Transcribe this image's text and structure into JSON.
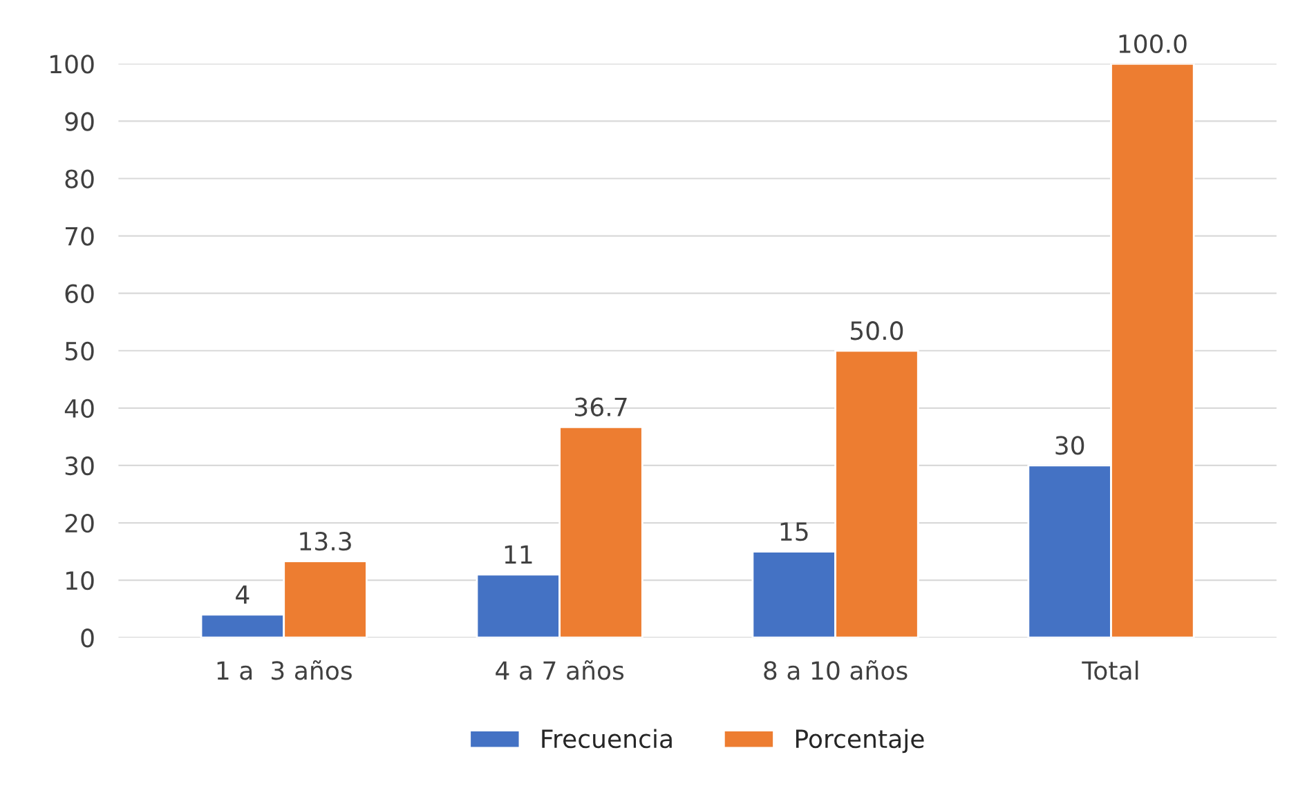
{
  "chart_data": {
    "type": "bar",
    "categories": [
      "1 a  3 años",
      "4 a 7 años",
      "8 a 10 años",
      "Total"
    ],
    "series": [
      {
        "name": "Frecuencia",
        "color": "#4472c4",
        "values": [
          4,
          11,
          15,
          30
        ],
        "value_labels": [
          "4",
          "11",
          "15",
          "30"
        ]
      },
      {
        "name": "Porcentaje",
        "color": "#ed7d31",
        "values": [
          13.3,
          36.7,
          50.0,
          100.0
        ],
        "value_labels": [
          "13.3",
          "36.7",
          "50.0",
          "100.0"
        ]
      }
    ],
    "ylim": [
      0,
      100
    ],
    "yticks": [
      0,
      10,
      20,
      30,
      40,
      50,
      60,
      70,
      80,
      90,
      100
    ],
    "grid": "y",
    "legend": "bottom"
  }
}
